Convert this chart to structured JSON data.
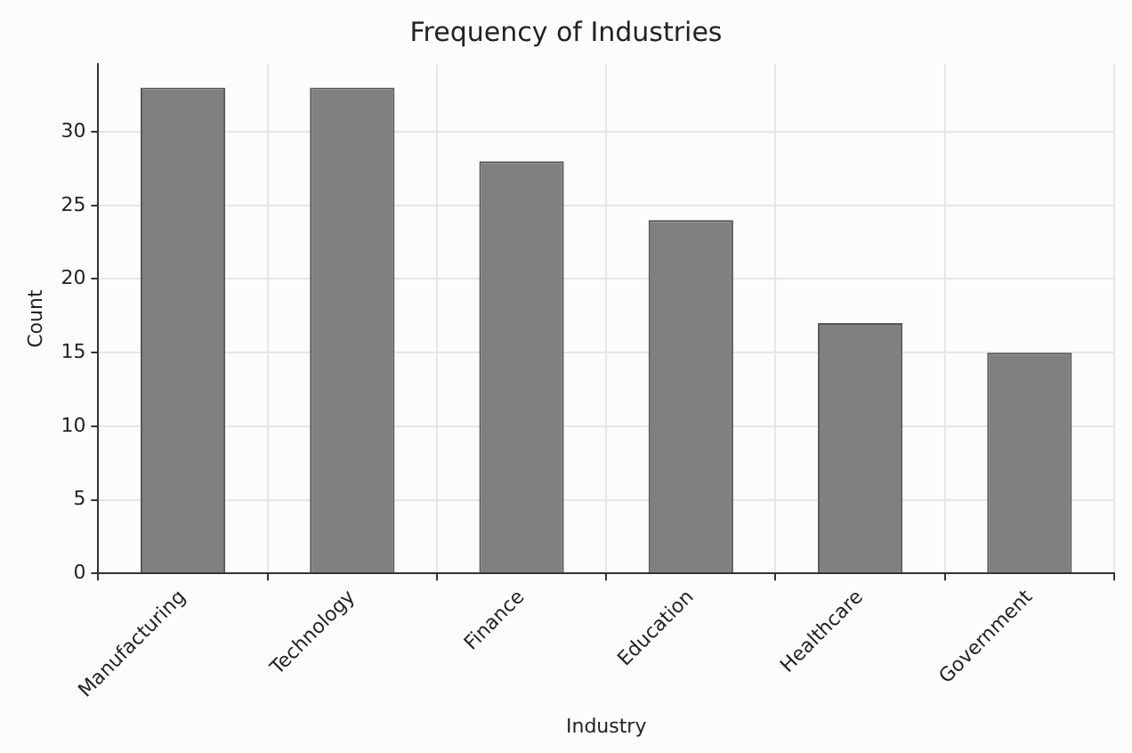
{
  "chart_data": {
    "type": "bar",
    "title": "Frequency of Industries",
    "xlabel": "Industry",
    "ylabel": "Count",
    "categories": [
      "Manufacturing",
      "Technology",
      "Finance",
      "Education",
      "Healthcare",
      "Government"
    ],
    "values": [
      33,
      33,
      28,
      24,
      17,
      15
    ],
    "color": "#808080",
    "ylim": [
      0,
      34.6
    ],
    "yticks": [
      0,
      5,
      10,
      15,
      20,
      25,
      30
    ],
    "grid": true,
    "legend": false
  }
}
